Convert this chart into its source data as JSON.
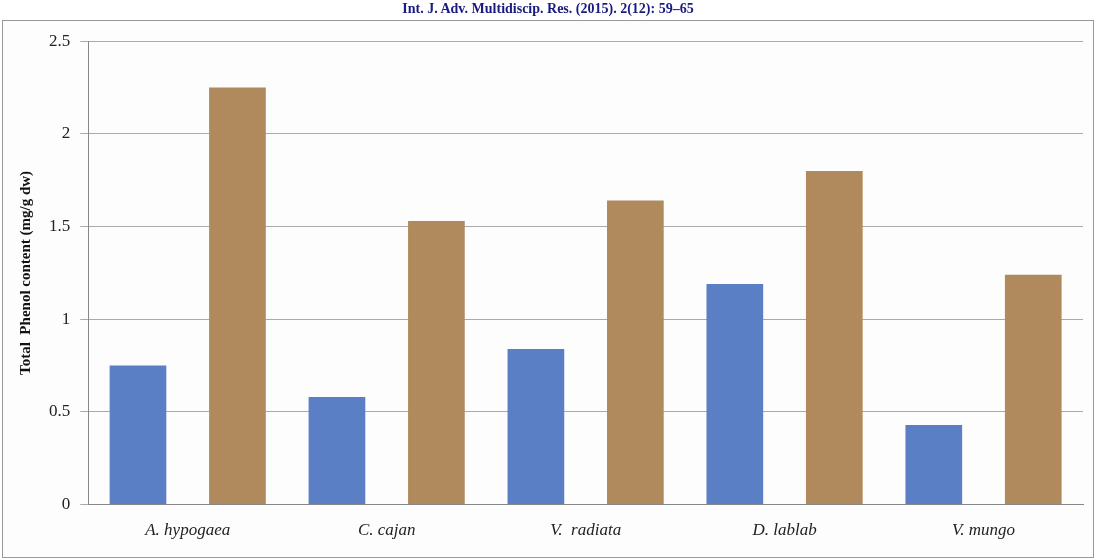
{
  "chart_data": {
    "type": "bar",
    "annotations": [
      "Int. J. Adv. Multidiscip. Res. (2015). 2(12): 59–65"
    ],
    "ylabel": "Total  Phenol content (mg/g dw)",
    "categories": [
      "A. hypogaea",
      "C. cajan",
      "V.  radiata",
      "D. lablab",
      "V. mungo"
    ],
    "series": [
      {
        "color": "#5b7fc4",
        "values": [
          0.75,
          0.58,
          0.84,
          1.19,
          0.43
        ]
      },
      {
        "color": "#b08a5c",
        "values": [
          2.25,
          1.53,
          1.64,
          1.8,
          1.24
        ]
      }
    ],
    "ylim": [
      0,
      2.5
    ],
    "yticks": [
      0,
      0.5,
      1,
      1.5,
      2,
      2.5
    ],
    "grid": "y",
    "legend": false
  }
}
